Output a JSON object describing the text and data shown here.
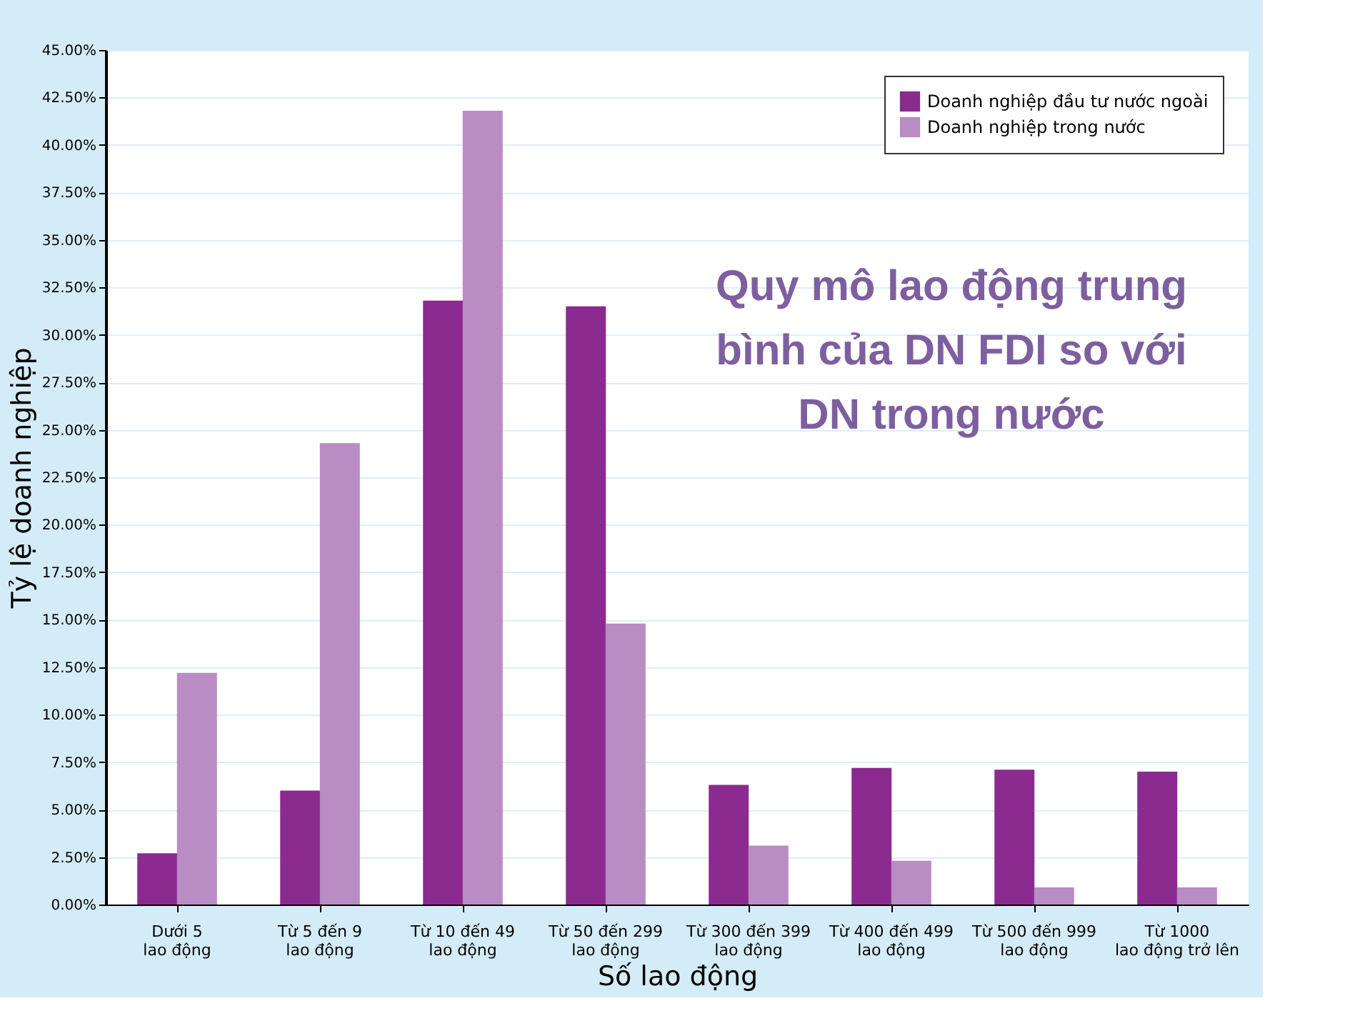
{
  "chart_data": {
    "type": "bar",
    "xlabel": "Số lao động",
    "ylabel": "Tỷ lệ doanh nghiệp",
    "categories": [
      "Dưới 5\nlao động",
      "Từ 5 đến 9\nlao động",
      "Từ 10 đến 49\nlao động",
      "Từ 50 đến 299\nlao động",
      "Từ 300 đến 399\nlao động",
      "Từ 400 đến 499\nlao động",
      "Từ 500 đến 999\nlao động",
      "Từ 1000\nlao động trở lên"
    ],
    "series": [
      {
        "name": "Doanh nghiệp đầu tư nước ngoài",
        "color": "#8b2a8f",
        "values": [
          2.7,
          6.0,
          31.8,
          31.5,
          6.3,
          7.2,
          7.1,
          7.0
        ]
      },
      {
        "name": "Doanh nghiệp trong nước",
        "color": "#b98cc3",
        "values": [
          12.2,
          24.3,
          41.8,
          14.8,
          3.1,
          2.3,
          0.9,
          0.9
        ]
      }
    ],
    "ylim": [
      0,
      45
    ],
    "yticks": [
      {
        "value": 0,
        "label": "0.00%"
      },
      {
        "value": 2.5,
        "label": "2.50%"
      },
      {
        "value": 5,
        "label": "5.00%"
      },
      {
        "value": 7.5,
        "label": "7.50%"
      },
      {
        "value": 10,
        "label": "10.00%"
      },
      {
        "value": 12.5,
        "label": "12.50%"
      },
      {
        "value": 15,
        "label": "15.00%"
      },
      {
        "value": 17.5,
        "label": "17.50%"
      },
      {
        "value": 20,
        "label": "20.00%"
      },
      {
        "value": 22.5,
        "label": "22.50%"
      },
      {
        "value": 25,
        "label": "25.00%"
      },
      {
        "value": 27.5,
        "label": "27.50%"
      },
      {
        "value": 30,
        "label": "30.00%"
      },
      {
        "value": 32.5,
        "label": "32.50%"
      },
      {
        "value": 35,
        "label": "35.00%"
      },
      {
        "value": 37.5,
        "label": "37.50%"
      },
      {
        "value": 40,
        "label": "40.00%"
      },
      {
        "value": 42.5,
        "label": "42.50%"
      },
      {
        "value": 45,
        "label": "45.00%"
      }
    ],
    "grid": "y",
    "legend": "top right",
    "annotations": [
      "Quy mô lao động trung bình của DN FDI so với DN trong nước"
    ]
  }
}
